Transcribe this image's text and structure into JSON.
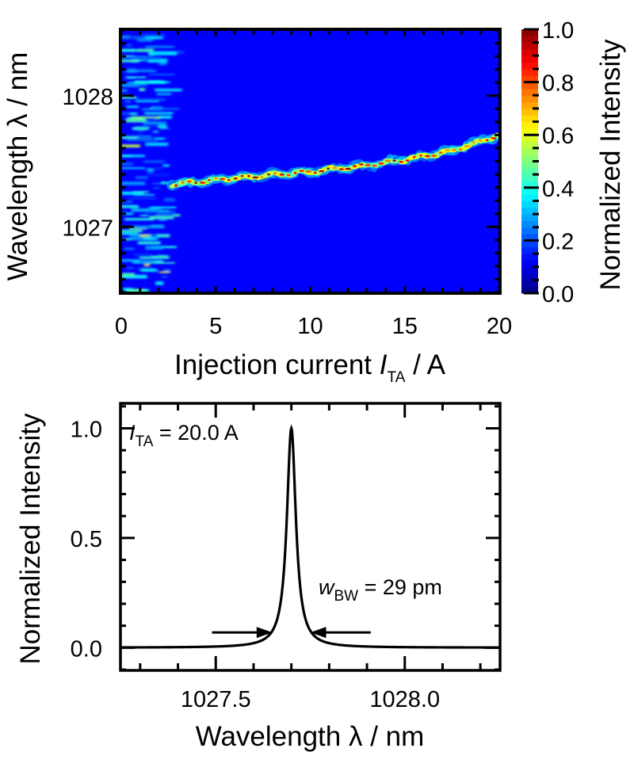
{
  "chart_data": [
    {
      "type": "heatmap",
      "title": "",
      "xlabel": "Injection current I_TA / A",
      "xlabel_parts": {
        "main": "Injection current ",
        "italic": "I",
        "sub": "TA",
        "tail": " / A"
      },
      "ylabel": "Wavelength λ / nm",
      "xlim": [
        0,
        20
      ],
      "ylim": [
        1026.5,
        1028.5
      ],
      "x_ticks": [
        0,
        5,
        10,
        15,
        20
      ],
      "x_tick_labels": [
        "0",
        "5",
        "10",
        "15",
        "20"
      ],
      "x_minor_step": 1,
      "y_ticks": [
        1027,
        1028
      ],
      "y_tick_labels": [
        "1027",
        "1028"
      ],
      "y_minor_step": 0.1,
      "colormap": "jet",
      "background_color": "#0000ff",
      "colorbar": {
        "label": "Normalized Intensity",
        "range": [
          0.0,
          1.0
        ],
        "ticks": [
          0.0,
          0.2,
          0.4,
          0.6,
          0.8,
          1.0
        ],
        "tick_labels": [
          "0.0",
          "0.2",
          "0.4",
          "0.6",
          "0.8",
          "1.0"
        ],
        "minor_step": 0.05
      },
      "noise_region_current_max": 2.6,
      "emission_ridge": {
        "description": "single-mode emission line above threshold",
        "points": [
          {
            "current": 2.7,
            "wavelength": 1027.32
          },
          {
            "current": 5.0,
            "wavelength": 1027.36
          },
          {
            "current": 7.5,
            "wavelength": 1027.39
          },
          {
            "current": 10.0,
            "wavelength": 1027.42
          },
          {
            "current": 12.5,
            "wavelength": 1027.46
          },
          {
            "current": 15.0,
            "wavelength": 1027.51
          },
          {
            "current": 17.5,
            "wavelength": 1027.58
          },
          {
            "current": 20.0,
            "wavelength": 1027.7
          }
        ],
        "peak_intensity": 1.0
      }
    },
    {
      "type": "line",
      "title": "",
      "xlabel": "Wavelength λ / nm",
      "ylabel": "Normalized Intensity",
      "xlim": [
        1027.25,
        1028.25
      ],
      "ylim": [
        -0.1,
        1.11
      ],
      "x_ticks": [
        1027.5,
        1028.0
      ],
      "x_tick_labels": [
        "1027.5",
        "1028.0"
      ],
      "x_minor_step": 0.1,
      "y_ticks": [
        0.0,
        0.5,
        1.0
      ],
      "y_tick_labels": [
        "0.0",
        "0.5",
        "1.0"
      ],
      "y_minor_step": 0.1,
      "series": [
        {
          "name": "spectrum at I_TA = 20.0 A",
          "color": "#000000",
          "peak_center": 1027.7,
          "peak_value": 1.0,
          "fwhm_pm": 29,
          "baseline": 0.0
        }
      ],
      "annotations": [
        {
          "text_italic": "I",
          "text_sub": "TA",
          "text_tail": " = 20.0 A",
          "position": "top-left"
        },
        {
          "text_italic": "w",
          "text_sub": "BW",
          "text_tail": " = 29 pm",
          "position": "right of peak"
        }
      ],
      "arrows": [
        {
          "direction": "right",
          "from": 1027.49,
          "to": 1027.65,
          "y": 0.08
        },
        {
          "direction": "left",
          "from": 1027.91,
          "to": 1027.75,
          "y": 0.08
        }
      ]
    }
  ]
}
